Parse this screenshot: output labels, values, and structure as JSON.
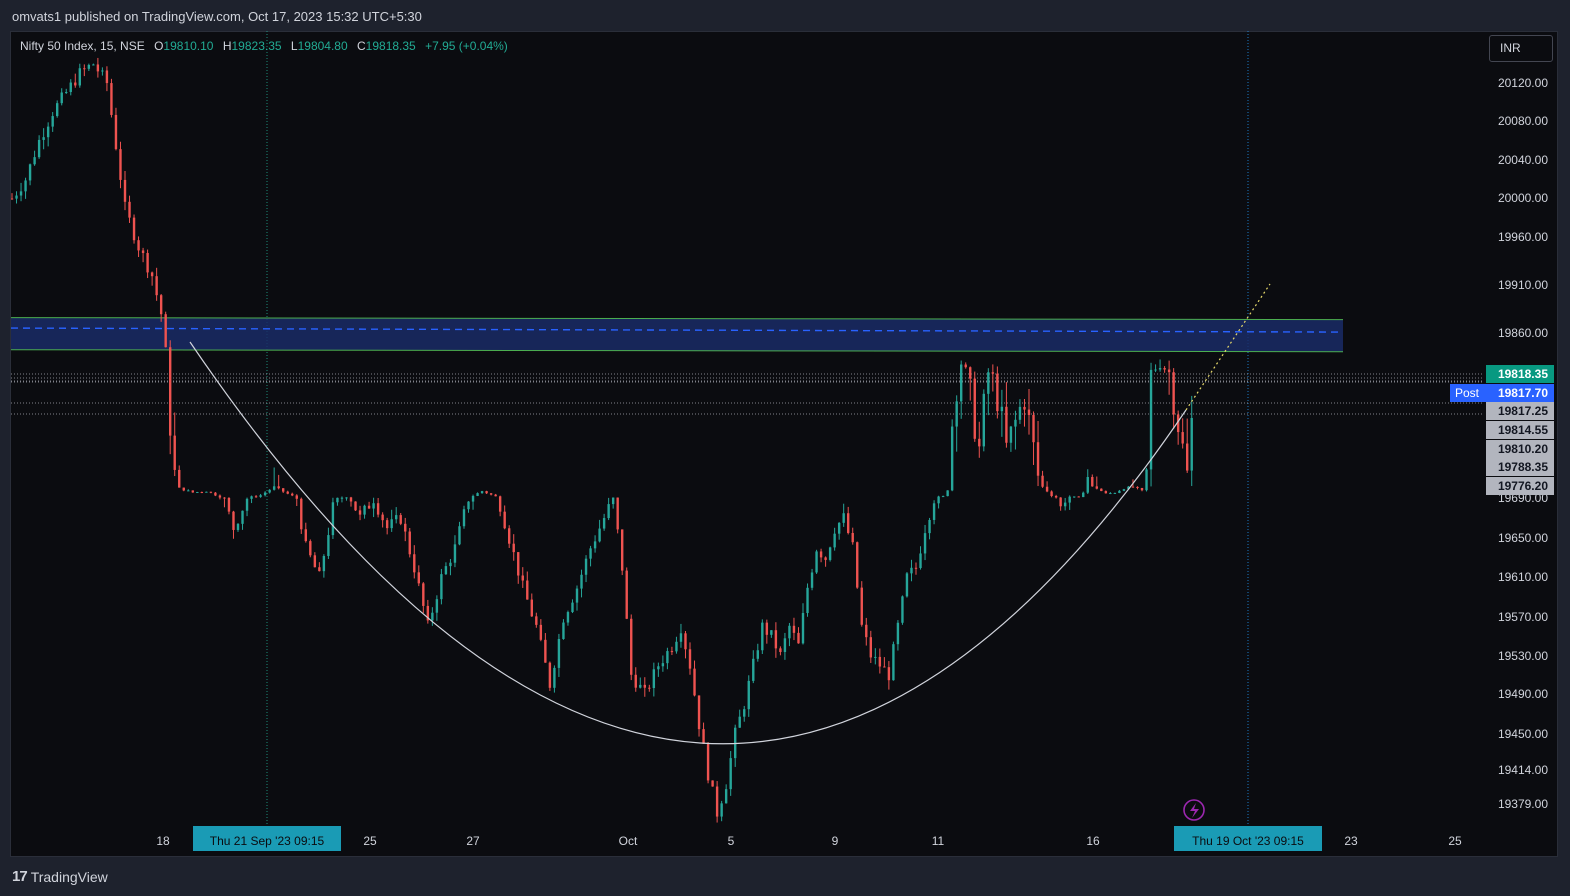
{
  "header": {
    "published_by": "omvats1 published on TradingView.com, Oct 17, 2023 15:32 UTC+5:30"
  },
  "legend": {
    "symbol": "Nifty 50 Index, 15, NSE",
    "o_label": "O",
    "o_value": "19810.10",
    "h_label": "H",
    "h_value": "19823.35",
    "l_label": "L",
    "l_value": "19804.80",
    "c_label": "C",
    "c_value": "19818.35",
    "change": "+7.95 (+0.04%)"
  },
  "currency_button": "INR",
  "footer": {
    "logo_text": "TradingView",
    "logo_mark": "17"
  },
  "chart_data": {
    "type": "candlestick",
    "title": "Nifty 50 Index, 15, NSE",
    "y_axis": {
      "ticks": [
        "20120.00",
        "20080.00",
        "20040.00",
        "20000.00",
        "19960.00",
        "19910.00",
        "19860.00",
        "19650.00",
        "19610.00",
        "19570.00",
        "19530.00",
        "19490.00",
        "19450.00",
        "19414.00",
        "19379.00"
      ],
      "partially_hidden_tick": "19690.00",
      "range": [
        19350,
        20160
      ]
    },
    "x_axis": {
      "ticks": [
        "18",
        "25",
        "27",
        "Oct",
        "5",
        "9",
        "11",
        "16",
        "23",
        "25"
      ],
      "crosshair_labels": [
        "Thu 21 Sep '23   09:15",
        "Thu 19 Oct '23   09:15"
      ]
    },
    "price_labels": [
      {
        "label": "",
        "value": "19818.35",
        "color": "#089981"
      },
      {
        "label": "Post",
        "value": "19817.70",
        "color": "#2962ff"
      },
      {
        "label": "",
        "value": "19817.25",
        "color": "#b2b5be"
      },
      {
        "label": "",
        "value": "19814.55",
        "color": "#b2b5be"
      },
      {
        "label": "",
        "value": "19810.20",
        "color": "#b2b5be"
      },
      {
        "label": "",
        "value": "19788.35",
        "color": "#b2b5be"
      },
      {
        "label": "",
        "value": "19776.20",
        "color": "#b2b5be"
      }
    ],
    "resistance_zone": {
      "upper": 19875,
      "lower": 19843,
      "mid_dashed": 19862,
      "color": "#2962ff"
    },
    "annotations": [
      "rounding-bottom arc",
      "yellow dotted projection line"
    ],
    "series_path_points": [
      [
        0,
        20000
      ],
      [
        3,
        20020
      ],
      [
        6,
        20060
      ],
      [
        9,
        20090
      ],
      [
        12,
        20110
      ],
      [
        15,
        20130
      ],
      [
        18,
        20140
      ],
      [
        21,
        20120
      ],
      [
        25,
        19990
      ],
      [
        28,
        19950
      ],
      [
        31,
        19920
      ],
      [
        33,
        19880
      ],
      [
        35,
        19800
      ],
      [
        37,
        19760
      ],
      [
        40,
        19730
      ],
      [
        43,
        19740
      ],
      [
        46,
        19700
      ],
      [
        49,
        19660
      ],
      [
        52,
        19690
      ],
      [
        55,
        19710
      ],
      [
        58,
        19770
      ],
      [
        61,
        19720
      ],
      [
        63,
        19690
      ],
      [
        65,
        19640
      ],
      [
        68,
        19610
      ],
      [
        71,
        19680
      ],
      [
        74,
        19700
      ],
      [
        77,
        19670
      ],
      [
        80,
        19690
      ],
      [
        83,
        19660
      ],
      [
        86,
        19670
      ],
      [
        89,
        19620
      ],
      [
        92,
        19560
      ],
      [
        95,
        19610
      ],
      [
        98,
        19640
      ],
      [
        101,
        19690
      ],
      [
        104,
        19740
      ],
      [
        107,
        19700
      ],
      [
        110,
        19650
      ],
      [
        113,
        19600
      ],
      [
        116,
        19560
      ],
      [
        119,
        19500
      ],
      [
        122,
        19570
      ],
      [
        125,
        19600
      ],
      [
        128,
        19640
      ],
      [
        131,
        19670
      ],
      [
        133,
        19690
      ],
      [
        135,
        19620
      ],
      [
        137,
        19510
      ],
      [
        140,
        19490
      ],
      [
        143,
        19520
      ],
      [
        146,
        19540
      ],
      [
        148,
        19560
      ],
      [
        150,
        19520
      ],
      [
        152,
        19460
      ],
      [
        154,
        19410
      ],
      [
        156,
        19370
      ],
      [
        158,
        19400
      ],
      [
        160,
        19450
      ],
      [
        162,
        19480
      ],
      [
        164,
        19520
      ],
      [
        166,
        19560
      ],
      [
        168,
        19550
      ],
      [
        170,
        19530
      ],
      [
        172,
        19560
      ],
      [
        174,
        19540
      ],
      [
        176,
        19600
      ],
      [
        178,
        19640
      ],
      [
        180,
        19630
      ],
      [
        182,
        19660
      ],
      [
        184,
        19670
      ],
      [
        186,
        19640
      ],
      [
        188,
        19560
      ],
      [
        190,
        19530
      ],
      [
        192,
        19520
      ],
      [
        194,
        19510
      ],
      [
        196,
        19560
      ],
      [
        198,
        19610
      ],
      [
        200,
        19620
      ],
      [
        202,
        19660
      ],
      [
        204,
        19690
      ],
      [
        206,
        19700
      ],
      [
        208,
        19800
      ],
      [
        210,
        19830
      ],
      [
        212,
        19810
      ],
      [
        214,
        19790
      ],
      [
        216,
        19820
      ],
      [
        218,
        19810
      ],
      [
        220,
        19790
      ],
      [
        222,
        19800
      ],
      [
        224,
        19810
      ],
      [
        226,
        19790
      ],
      [
        228,
        19770
      ],
      [
        230,
        19710
      ],
      [
        232,
        19680
      ],
      [
        234,
        19700
      ],
      [
        236,
        19690
      ],
      [
        238,
        19780
      ],
      [
        240,
        19760
      ],
      [
        242,
        19720
      ],
      [
        244,
        19730
      ],
      [
        246,
        19760
      ],
      [
        248,
        19770
      ],
      [
        250,
        19740
      ],
      [
        252,
        19820
      ],
      [
        254,
        19830
      ],
      [
        256,
        19820
      ],
      [
        258,
        19800
      ],
      [
        260,
        19780
      ],
      [
        262,
        19820
      ]
    ]
  }
}
